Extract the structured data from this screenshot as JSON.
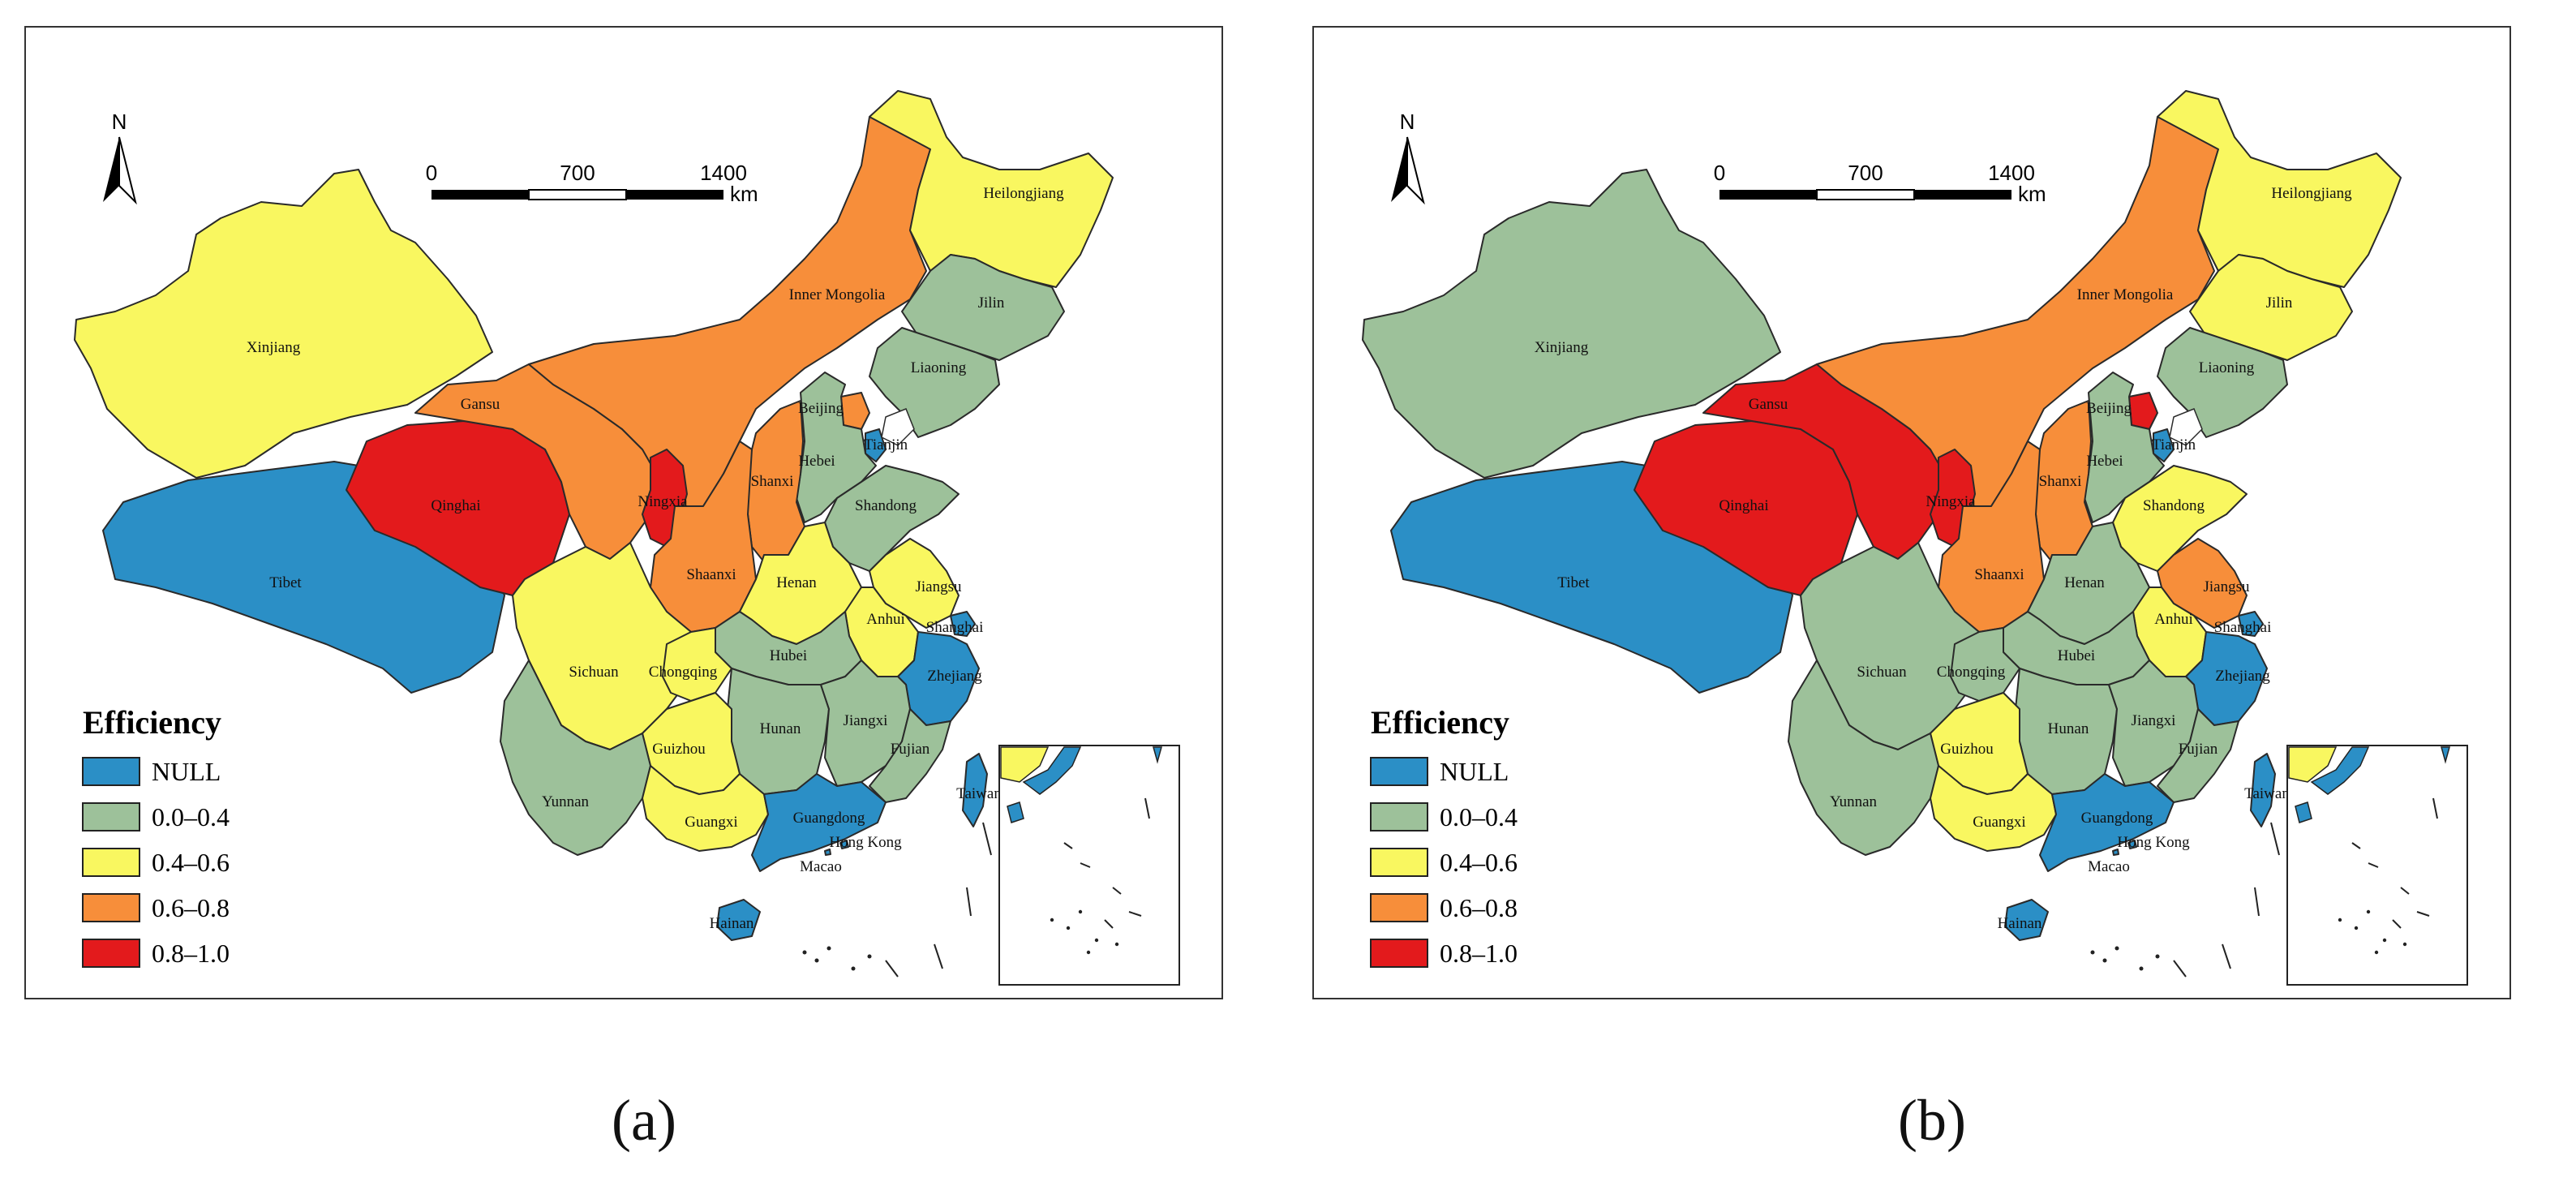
{
  "colors": {
    "NULL": "#2b8fc6",
    "0.0-0.4": "#9dc19a",
    "0.4-0.6": "#f9f760",
    "0.6-0.8": "#f78e3a",
    "0.8-1.0": "#e31a1c"
  },
  "legend": {
    "title": "Efficiency",
    "items": [
      {
        "key": "NULL",
        "label": "NULL"
      },
      {
        "key": "0.0-0.4",
        "label": "0.0–0.4"
      },
      {
        "key": "0.4-0.6",
        "label": "0.4–0.6"
      },
      {
        "key": "0.6-0.8",
        "label": "0.6–0.8"
      },
      {
        "key": "0.8-1.0",
        "label": "0.8–1.0"
      }
    ]
  },
  "north_arrow": "N",
  "scale_bar": {
    "ticks": [
      "0",
      "700",
      "1400"
    ],
    "unit": "km"
  },
  "panels": [
    {
      "label_text": "(a)",
      "classes": {
        "Xinjiang": "0.4-0.6",
        "Tibet": "NULL",
        "Qinghai": "0.8-1.0",
        "Gansu": "0.6-0.8",
        "Inner Mongolia": "0.6-0.8",
        "Heilongjiang": "0.4-0.6",
        "Jilin": "0.0-0.4",
        "Liaoning": "0.0-0.4",
        "Beijing": "0.6-0.8",
        "Tianjin": "NULL",
        "Hebei": "0.0-0.4",
        "Shanxi": "0.6-0.8",
        "Ningxia": "0.8-1.0",
        "Shaanxi": "0.6-0.8",
        "Shandong": "0.0-0.4",
        "Henan": "0.4-0.6",
        "Jiangsu": "0.4-0.6",
        "Anhui": "0.4-0.6",
        "Shanghai": "NULL",
        "Hubei": "0.0-0.4",
        "Sichuan": "0.4-0.6",
        "Chongqing": "0.4-0.6",
        "Zhejiang": "NULL",
        "Hunan": "0.0-0.4",
        "Jiangxi": "0.0-0.4",
        "Fujian": "0.0-0.4",
        "Guizhou": "0.4-0.6",
        "Yunnan": "0.0-0.4",
        "Guangxi": "0.4-0.6",
        "Guangdong": "NULL",
        "Taiwan": "NULL",
        "Hong Kong": "NULL",
        "Macao": "NULL",
        "Hainan": "NULL"
      }
    },
    {
      "label_text": "(b)",
      "classes": {
        "Xinjiang": "0.0-0.4",
        "Tibet": "NULL",
        "Qinghai": "0.8-1.0",
        "Gansu": "0.8-1.0",
        "Inner Mongolia": "0.6-0.8",
        "Heilongjiang": "0.4-0.6",
        "Jilin": "0.4-0.6",
        "Liaoning": "0.0-0.4",
        "Beijing": "0.8-1.0",
        "Tianjin": "NULL",
        "Hebei": "0.0-0.4",
        "Shanxi": "0.6-0.8",
        "Ningxia": "0.8-1.0",
        "Shaanxi": "0.6-0.8",
        "Shandong": "0.4-0.6",
        "Henan": "0.0-0.4",
        "Jiangsu": "0.6-0.8",
        "Anhui": "0.4-0.6",
        "Shanghai": "NULL",
        "Hubei": "0.0-0.4",
        "Sichuan": "0.0-0.4",
        "Chongqing": "0.0-0.4",
        "Zhejiang": "NULL",
        "Hunan": "0.0-0.4",
        "Jiangxi": "0.0-0.4",
        "Fujian": "0.0-0.4",
        "Guizhou": "0.4-0.6",
        "Yunnan": "0.0-0.4",
        "Guangxi": "0.4-0.6",
        "Guangdong": "NULL",
        "Taiwan": "NULL",
        "Hong Kong": "NULL",
        "Macao": "NULL",
        "Hainan": "NULL"
      }
    }
  ]
}
